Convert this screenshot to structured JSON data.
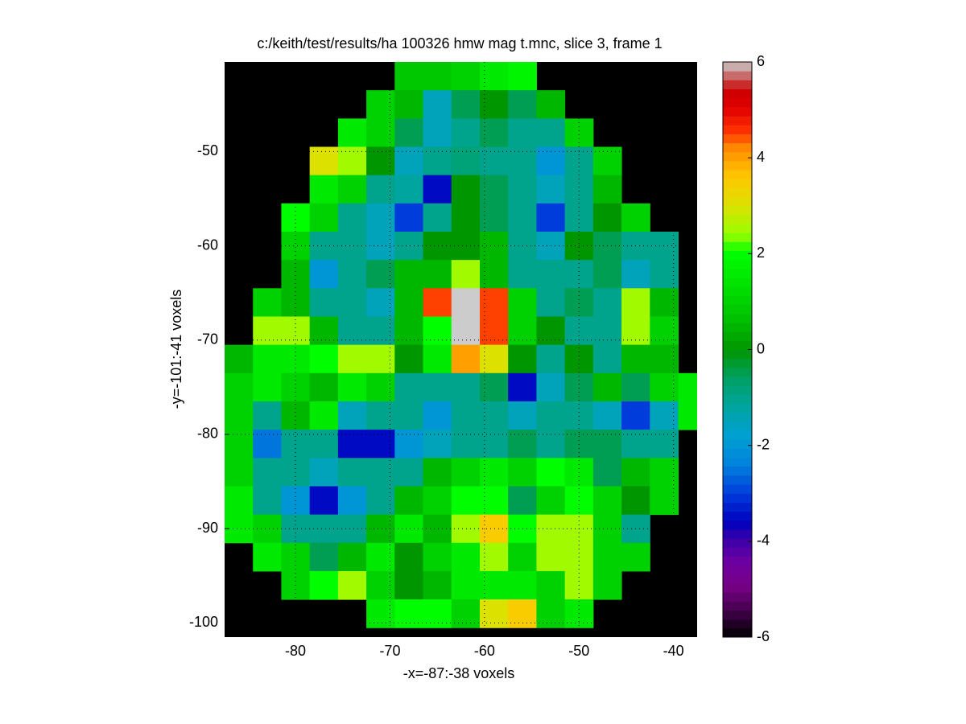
{
  "chart_data": {
    "type": "heatmap",
    "title": "c:/keith/test/results/ha 100326 hmw mag t.mnc, slice 3, frame 1",
    "x_label": "-x=-87:-38 voxels",
    "y_label": "-y=-101:-41 voxels",
    "colormap": "spectral",
    "background": "#000000",
    "grid": true,
    "xlim": [
      -87.5,
      -37.5
    ],
    "ylim": [
      -101.5,
      -40.5
    ],
    "xticks": [
      -80,
      -70,
      -60,
      -50,
      -40
    ],
    "yticks": [
      -100,
      -90,
      -80,
      -70,
      -60,
      -50
    ],
    "clim": [
      -6,
      6
    ],
    "colorbar_ticks": [
      -6,
      -4,
      -2,
      0,
      2,
      4,
      6
    ],
    "x": [
      -86,
      -83,
      -80,
      -77,
      -74,
      -71,
      -68,
      -65,
      -62,
      -59,
      -56,
      -53,
      -50,
      -47,
      -44,
      -41,
      -38
    ],
    "y": [
      -42,
      -45,
      -48,
      -51,
      -54,
      -57,
      -60,
      -63,
      -66,
      -69,
      -72,
      -75,
      -78,
      -81,
      -84,
      -87,
      -90,
      -93,
      -96,
      -99
    ],
    "z": [
      [
        null,
        null,
        null,
        null,
        null,
        null,
        0.8,
        0.8,
        1,
        1.5,
        1.8,
        null,
        null,
        null,
        null,
        null,
        null
      ],
      [
        null,
        null,
        null,
        null,
        null,
        1,
        0.5,
        -1.5,
        -0.5,
        0,
        -0.5,
        0.5,
        null,
        null,
        null,
        null,
        null
      ],
      [
        null,
        null,
        null,
        null,
        1.5,
        1,
        -0.5,
        -1.5,
        -1,
        -0.5,
        -1,
        -1,
        1,
        null,
        null,
        null,
        null
      ],
      [
        null,
        null,
        null,
        3,
        2.5,
        0,
        -1.5,
        -1,
        -0.8,
        -1,
        -1,
        -2,
        -1,
        1,
        null,
        null,
        null
      ],
      [
        null,
        null,
        null,
        1.5,
        1,
        -1,
        -1.2,
        -3.5,
        0,
        -0.5,
        -1,
        -1.5,
        -1,
        0.5,
        null,
        null,
        null
      ],
      [
        null,
        null,
        2,
        1,
        -1,
        -1.5,
        -3,
        -1,
        0,
        -0.5,
        -1,
        -3,
        -1,
        0,
        1,
        null,
        null
      ],
      [
        null,
        null,
        1,
        -1,
        -1,
        -1.5,
        -1,
        0,
        0,
        0.5,
        -1,
        -1.5,
        0,
        -0.5,
        -1,
        -1,
        null
      ],
      [
        null,
        null,
        0.5,
        -2,
        -1,
        -0.5,
        0.5,
        0.5,
        2.5,
        0.5,
        -1,
        -1,
        -1,
        -0.5,
        -1.5,
        -1,
        null
      ],
      [
        null,
        1,
        0.5,
        -1,
        -1,
        -1.5,
        0.5,
        4.5,
        6,
        4.5,
        1,
        -1,
        -0.5,
        -1,
        2.5,
        0.5,
        null
      ],
      [
        null,
        2.5,
        2.5,
        0.5,
        -1,
        -1,
        0.5,
        2,
        6,
        4.5,
        1,
        0,
        -1,
        -1,
        2.5,
        1,
        null
      ],
      [
        0.5,
        1.5,
        1.5,
        2,
        2.5,
        2.5,
        0,
        1.5,
        4,
        3,
        0,
        -1,
        0,
        -1,
        0.5,
        0.5,
        null
      ],
      [
        1,
        1.5,
        1,
        0.5,
        1.5,
        1,
        -1,
        -1,
        -1,
        -0.5,
        -3.5,
        -1.5,
        -0.5,
        0.5,
        -0.5,
        1,
        1.5
      ],
      [
        1,
        -1,
        0.5,
        1.5,
        -1.5,
        -1,
        -1,
        -2,
        -1,
        -1,
        -1.5,
        -1,
        -1,
        -1.5,
        -3,
        -1.5,
        1.5
      ],
      [
        1,
        -2.5,
        -1,
        -1,
        -3.5,
        -3.5,
        -2,
        -1.5,
        -1,
        -1,
        -0.5,
        -1,
        -0.5,
        -0.5,
        -1,
        -1,
        null
      ],
      [
        1,
        -1,
        -1,
        -1.5,
        -1,
        -1,
        -1,
        0.5,
        1,
        1.5,
        1,
        2,
        1.5,
        -0.5,
        0.5,
        1,
        null
      ],
      [
        1.5,
        -1,
        -2,
        -3.5,
        -2,
        -1,
        0.5,
        1,
        2,
        2,
        -0.5,
        1,
        2,
        1,
        0,
        1,
        null
      ],
      [
        1.5,
        1,
        -1,
        -1,
        -1,
        0.5,
        1.5,
        0.5,
        2.5,
        3.5,
        2,
        2.5,
        2.5,
        1,
        -1,
        null,
        null
      ],
      [
        null,
        1.5,
        1,
        -0.5,
        0.5,
        1.5,
        0,
        1,
        1.5,
        2.5,
        1,
        2.5,
        2.5,
        1,
        1,
        null,
        null
      ],
      [
        null,
        null,
        1,
        2,
        2.5,
        1,
        0,
        0.5,
        1.5,
        1.5,
        1.5,
        1,
        2.5,
        1,
        null,
        null,
        null
      ],
      [
        null,
        null,
        null,
        null,
        null,
        1.5,
        2,
        2,
        1,
        3,
        3.5,
        1,
        1.5,
        null,
        null,
        null,
        null
      ]
    ]
  }
}
